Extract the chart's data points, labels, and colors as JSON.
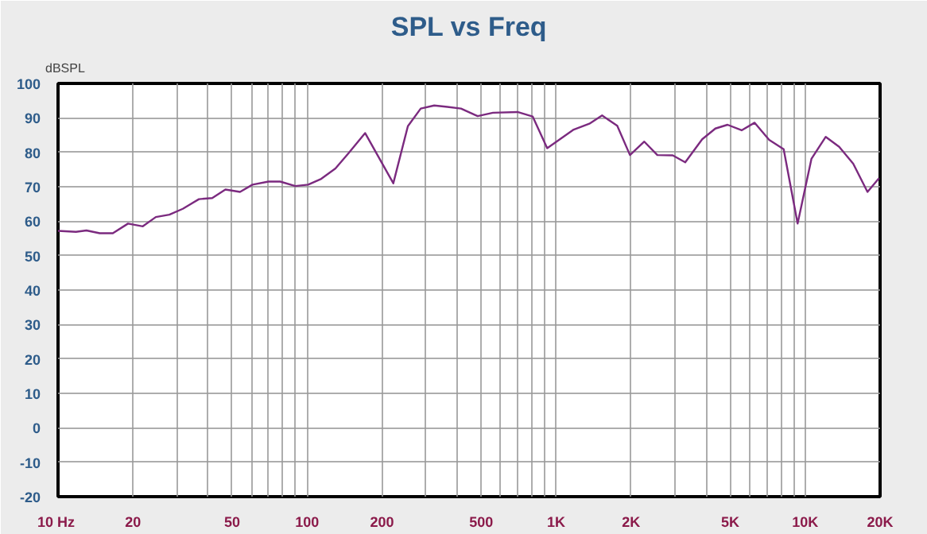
{
  "chart_data": {
    "type": "line",
    "title": "SPL vs Freq",
    "ylabel": "dBSPL",
    "log": "x",
    "grid": true,
    "marker": "none",
    "line_style": "solid",
    "xlim": [
      10,
      20000
    ],
    "ylim": [
      -20,
      100
    ],
    "xticks": [
      {
        "value": 10,
        "label": "10  Hz"
      },
      20,
      {
        "value": 30,
        "label": null
      },
      {
        "value": 40,
        "label": null
      },
      50,
      {
        "value": 60,
        "label": null
      },
      {
        "value": 70,
        "label": null
      },
      {
        "value": 80,
        "label": null
      },
      {
        "value": 90,
        "label": null
      },
      100,
      200,
      {
        "value": 300,
        "label": null
      },
      {
        "value": 400,
        "label": null
      },
      500,
      {
        "value": 600,
        "label": null
      },
      {
        "value": 700,
        "label": null
      },
      {
        "value": 800,
        "label": null
      },
      {
        "value": 900,
        "label": null
      },
      {
        "value": 1000,
        "label": "1K"
      },
      {
        "value": 2000,
        "label": "2K"
      },
      {
        "value": 3000,
        "label": null
      },
      {
        "value": 4000,
        "label": null
      },
      {
        "value": 5000,
        "label": "5K"
      },
      {
        "value": 6000,
        "label": null
      },
      {
        "value": 7000,
        "label": null
      },
      {
        "value": 8000,
        "label": null
      },
      {
        "value": 9000,
        "label": null
      },
      {
        "value": 10000,
        "label": "10K"
      },
      {
        "value": 20000,
        "label": "20K"
      }
    ],
    "yticks": [
      -20,
      -10,
      0,
      10,
      20,
      30,
      40,
      50,
      60,
      70,
      80,
      90,
      100
    ],
    "series": [
      {
        "color": "#7b2a7f",
        "x": [
          10,
          11.8,
          13,
          14.7,
          16.6,
          19.1,
          21.9,
          24.7,
          28,
          31.7,
          36.8,
          41.6,
          47,
          53.8,
          60.4,
          70,
          78,
          89.7,
          101,
          114,
          130,
          147,
          171,
          222,
          254,
          286,
          324,
          366,
          415,
          484,
          558,
          700,
          805,
          921,
          1177,
          1360,
          1530,
          1760,
          1980,
          2260,
          2550,
          2940,
          3300,
          3860,
          4360,
          4880,
          5560,
          6270,
          7170,
          8200,
          9330,
          10600,
          12100,
          13700,
          15600,
          17800,
          19800
        ],
        "values": [
          57.2,
          56.9,
          57.3,
          56.5,
          56.5,
          59.3,
          58.5,
          61.2,
          61.9,
          63.6,
          66.4,
          66.7,
          69.2,
          68.5,
          70.6,
          71.5,
          71.5,
          70.2,
          70.6,
          72.3,
          75.3,
          79.8,
          85.6,
          71.0,
          87.6,
          92.7,
          93.6,
          93.2,
          92.7,
          90.5,
          91.5,
          91.7,
          90.4,
          81.2,
          86.6,
          88.3,
          90.7,
          87.7,
          79.2,
          83.1,
          79.2,
          79.1,
          77.1,
          83.8,
          86.9,
          88.0,
          86.4,
          88.6,
          83.6,
          80.9,
          59.3,
          78.1,
          84.5,
          81.6,
          76.7,
          68.5,
          72.5
        ]
      }
    ]
  }
}
